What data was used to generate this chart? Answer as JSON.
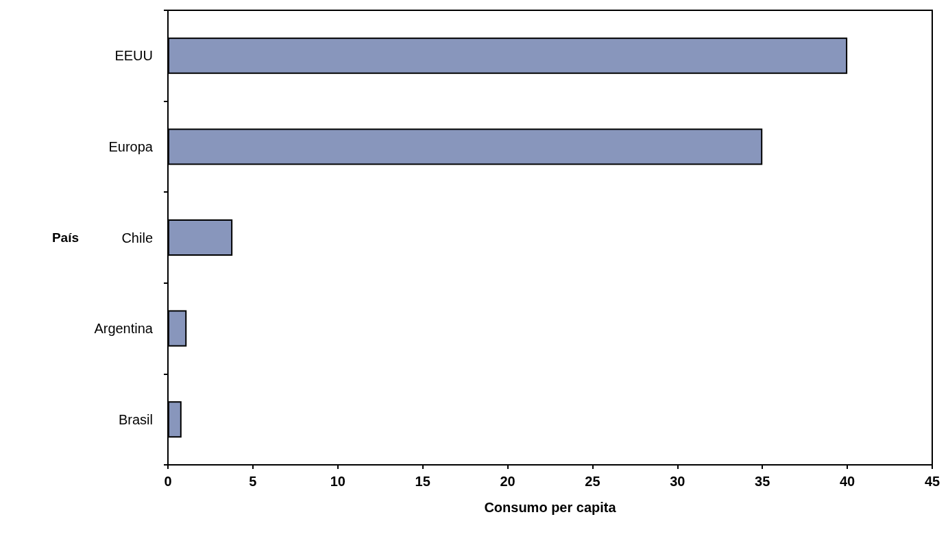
{
  "chart_data": {
    "type": "bar",
    "orientation": "horizontal",
    "xlabel": "Consumo per capita",
    "ylabel": "País",
    "categories": [
      "EEUU",
      "Europa",
      "Chile",
      "Argentina",
      "Brasil"
    ],
    "values": [
      40,
      35,
      3.8,
      1.1,
      0.8
    ],
    "color": "#8896bc",
    "xlim": [
      0,
      45
    ],
    "xticks": [
      0,
      5,
      10,
      15,
      20,
      25,
      30,
      35,
      40,
      45
    ],
    "grid": false
  }
}
